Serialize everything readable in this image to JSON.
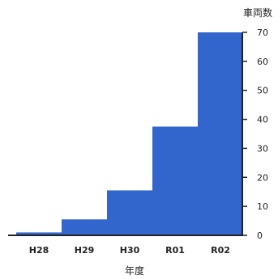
{
  "chart_data": {
    "type": "bar",
    "title": "",
    "xlabel": "年度",
    "ylabel": "車両数",
    "categories": [
      "H28",
      "H29",
      "H30",
      "R01",
      "R02"
    ],
    "values": [
      1,
      5.5,
      15.5,
      37.5,
      70
    ],
    "ylim": [
      0,
      70
    ],
    "yticks": [
      0,
      10,
      20,
      30,
      40,
      50,
      60,
      70
    ],
    "grid": false,
    "bar_color": "#3366cc",
    "axis_position": "right"
  }
}
